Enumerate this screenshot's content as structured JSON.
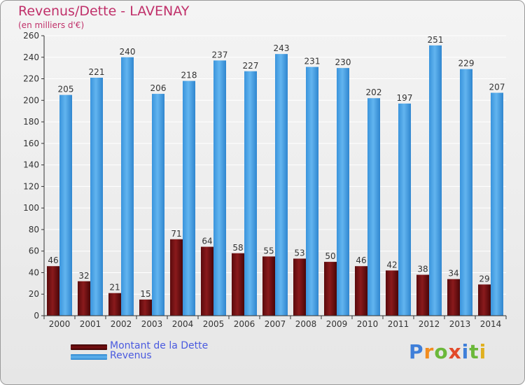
{
  "title": "Revenus/Dette - LAVENAY",
  "subtitle": "(en milliers d'€)",
  "legend": {
    "debt_label": "Montant de la Dette",
    "revenue_label": "Revenus"
  },
  "logo": {
    "text": "Proxiti",
    "letters": [
      "P",
      "r",
      "o",
      "x",
      "i",
      "t",
      "i"
    ],
    "colors": [
      "#3f7fd9",
      "#f28c1e",
      "#6bb83a",
      "#e24a2a",
      "#3f7fd9",
      "#6bb83a",
      "#e0b020"
    ]
  },
  "colors": {
    "debt": "#7a0f12",
    "revenue": "#4aa3e6",
    "axis": "#333333",
    "grid": "#ffffff"
  },
  "chart_data": {
    "type": "bar",
    "categories": [
      "2000",
      "2001",
      "2002",
      "2003",
      "2004",
      "2005",
      "2006",
      "2007",
      "2008",
      "2009",
      "2010",
      "2011",
      "2012",
      "2013",
      "2014"
    ],
    "series": [
      {
        "name": "Montant de la Dette",
        "values": [
          46,
          32,
          21,
          15,
          71,
          64,
          58,
          55,
          53,
          50,
          46,
          42,
          38,
          34,
          29
        ]
      },
      {
        "name": "Revenus",
        "values": [
          205,
          221,
          240,
          206,
          218,
          237,
          227,
          243,
          231,
          230,
          202,
          197,
          251,
          229,
          207
        ]
      }
    ],
    "yticks": [
      0,
      20,
      40,
      60,
      80,
      100,
      120,
      140,
      160,
      180,
      200,
      220,
      240,
      260
    ],
    "ylim": [
      0,
      260
    ],
    "grid": true,
    "legend_position": "bottom-left"
  }
}
